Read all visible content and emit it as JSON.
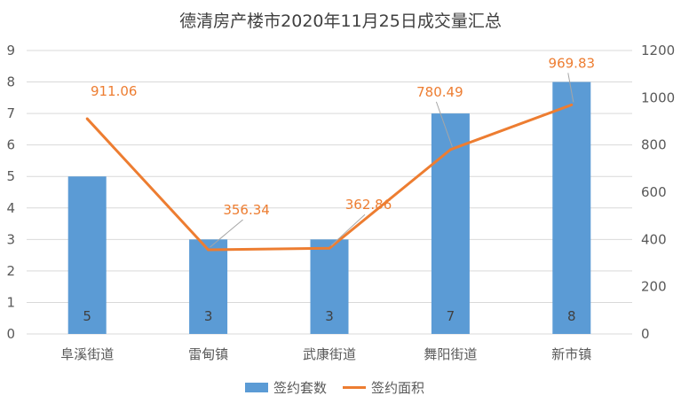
{
  "chart_data": {
    "type": "bar+line",
    "title": "德清房产楼市2020年11月25日成交量汇总",
    "categories": [
      "阜溪街道",
      "雷甸镇",
      "武康街道",
      "舞阳街道",
      "新市镇"
    ],
    "series": [
      {
        "name": "签约套数",
        "type": "bar",
        "axis": "left",
        "values": [
          5,
          3,
          3,
          7,
          8
        ],
        "color": "#5B9BD5"
      },
      {
        "name": "签约面积",
        "type": "line",
        "axis": "right",
        "values": [
          911.06,
          356.34,
          362.86,
          780.49,
          969.83
        ],
        "labels": [
          "911.06",
          "356.34",
          "362.86",
          "780.49",
          "969.83"
        ],
        "color": "#ED7D31"
      }
    ],
    "y_left": {
      "min": 0,
      "max": 9,
      "step": 1,
      "ticks": [
        "0",
        "1",
        "2",
        "3",
        "4",
        "5",
        "6",
        "7",
        "8",
        "9"
      ]
    },
    "y_right": {
      "min": 0,
      "max": 1200,
      "step": 200,
      "ticks": [
        "0",
        "200",
        "400",
        "600",
        "800",
        "1000",
        "1200"
      ]
    },
    "grid": true,
    "legend_position": "bottom"
  }
}
